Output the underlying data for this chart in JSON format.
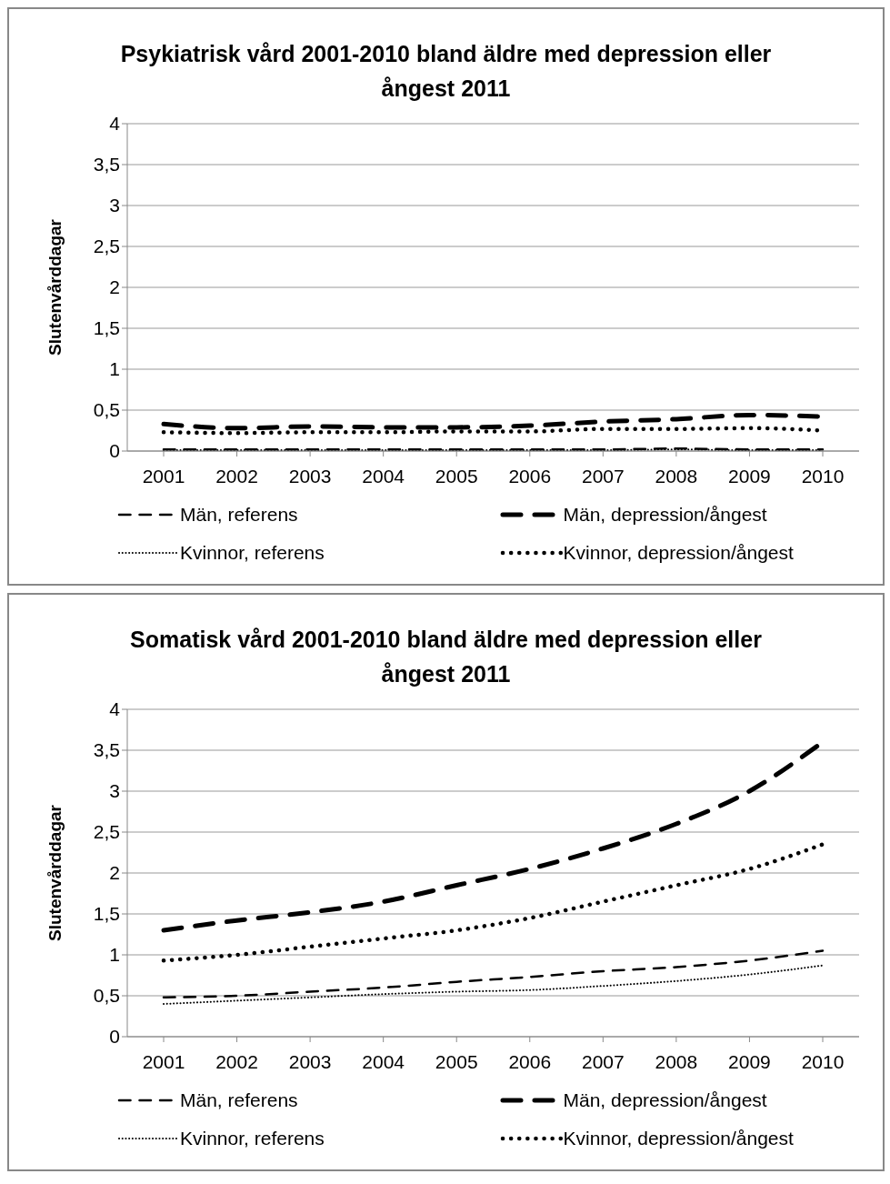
{
  "chart_data": [
    {
      "type": "line",
      "title": "Psykiatrisk vård 2001-2010 bland äldre med depression eller ångest 2011",
      "ylabel": "Slutenvårddagar",
      "categories": [
        "2001",
        "2002",
        "2003",
        "2004",
        "2005",
        "2006",
        "2007",
        "2008",
        "2009",
        "2010"
      ],
      "ylim": [
        0,
        4
      ],
      "yticks": [
        0,
        {
          "value": 0.5,
          "label": "0,5"
        },
        1,
        {
          "value": 1.5,
          "label": "1,5"
        },
        2,
        {
          "value": 2.5,
          "label": "2,5"
        },
        3,
        {
          "value": 3.5,
          "label": "3,5"
        },
        4
      ],
      "grid": "y",
      "legend": "bottom",
      "marker": "none",
      "series": [
        {
          "name": "Män, referens",
          "color": "#000000",
          "line_style": "dashed",
          "values": [
            0.02,
            0.02,
            0.02,
            0.02,
            0.02,
            0.02,
            0.02,
            0.03,
            0.02,
            0.02
          ]
        },
        {
          "name": "Män, depression/ångest",
          "color": "#000000",
          "line_style": "dashed",
          "values": [
            0.33,
            0.28,
            0.3,
            0.29,
            0.29,
            0.31,
            0.36,
            0.39,
            0.44,
            0.42
          ]
        },
        {
          "name": "Kvinnor, referens",
          "color": "#000000",
          "line_style": "dotted",
          "values": [
            0.01,
            0.01,
            0.01,
            0.01,
            0.01,
            0.01,
            0.01,
            0.02,
            0.01,
            0.01
          ]
        },
        {
          "name": "Kvinnor, depression/ångest",
          "color": "#000000",
          "line_style": "dotted",
          "values": [
            0.23,
            0.22,
            0.23,
            0.23,
            0.24,
            0.24,
            0.27,
            0.27,
            0.28,
            0.25
          ]
        }
      ]
    },
    {
      "type": "line",
      "title": "Somatisk vård 2001-2010 bland äldre med depression eller ångest 2011",
      "ylabel": "Slutenvårddagar",
      "categories": [
        "2001",
        "2002",
        "2003",
        "2004",
        "2005",
        "2006",
        "2007",
        "2008",
        "2009",
        "2010"
      ],
      "ylim": [
        0,
        4
      ],
      "yticks": [
        0,
        {
          "value": 0.5,
          "label": "0,5"
        },
        1,
        {
          "value": 1.5,
          "label": "1,5"
        },
        2,
        {
          "value": 2.5,
          "label": "2,5"
        },
        3,
        {
          "value": 3.5,
          "label": "3,5"
        },
        4
      ],
      "grid": "y",
      "legend": "bottom",
      "marker": "none",
      "series": [
        {
          "name": "Män, referens",
          "color": "#000000",
          "line_style": "dashed",
          "values": [
            0.48,
            0.5,
            0.55,
            0.6,
            0.67,
            0.73,
            0.8,
            0.85,
            0.93,
            1.05
          ]
        },
        {
          "name": "Män, depression/ångest",
          "color": "#000000",
          "line_style": "dashed",
          "values": [
            1.3,
            1.42,
            1.52,
            1.65,
            1.85,
            2.05,
            2.3,
            2.6,
            3.0,
            3.6
          ]
        },
        {
          "name": "Kvinnor, referens",
          "color": "#000000",
          "line_style": "dotted",
          "values": [
            0.4,
            0.44,
            0.48,
            0.52,
            0.55,
            0.57,
            0.62,
            0.68,
            0.76,
            0.87
          ]
        },
        {
          "name": "Kvinnor, depression/ångest",
          "color": "#000000",
          "line_style": "dotted",
          "values": [
            0.93,
            1.0,
            1.1,
            1.2,
            1.3,
            1.45,
            1.65,
            1.85,
            2.05,
            2.35
          ]
        }
      ]
    }
  ]
}
